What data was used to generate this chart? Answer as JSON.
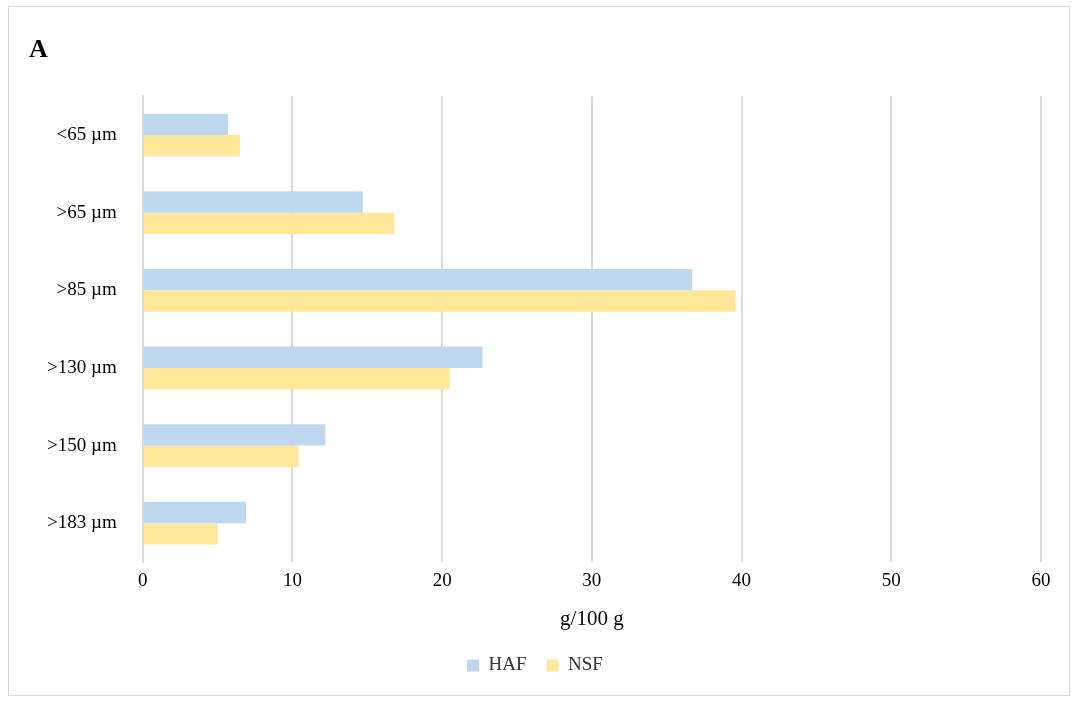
{
  "chart_data": {
    "type": "bar",
    "orientation": "horizontal",
    "title": "A",
    "xlabel": "g/100 g",
    "categories": [
      "<65 µm",
      ">65 µm",
      ">85 µm",
      ">130 µm",
      ">150 µm",
      ">183 µm"
    ],
    "series": [
      {
        "name": "HAF",
        "color": "#bdd7ee",
        "values": [
          5.7,
          14.7,
          36.7,
          22.7,
          12.2,
          6.9
        ]
      },
      {
        "name": "NSF",
        "color": "#ffe699",
        "values": [
          6.5,
          16.8,
          39.6,
          20.5,
          10.4,
          5.0
        ]
      }
    ],
    "xlim": [
      0,
      60
    ],
    "xticks": [
      0,
      10,
      20,
      30,
      40,
      50,
      60
    ],
    "grid": "x",
    "legend": "bottom"
  }
}
